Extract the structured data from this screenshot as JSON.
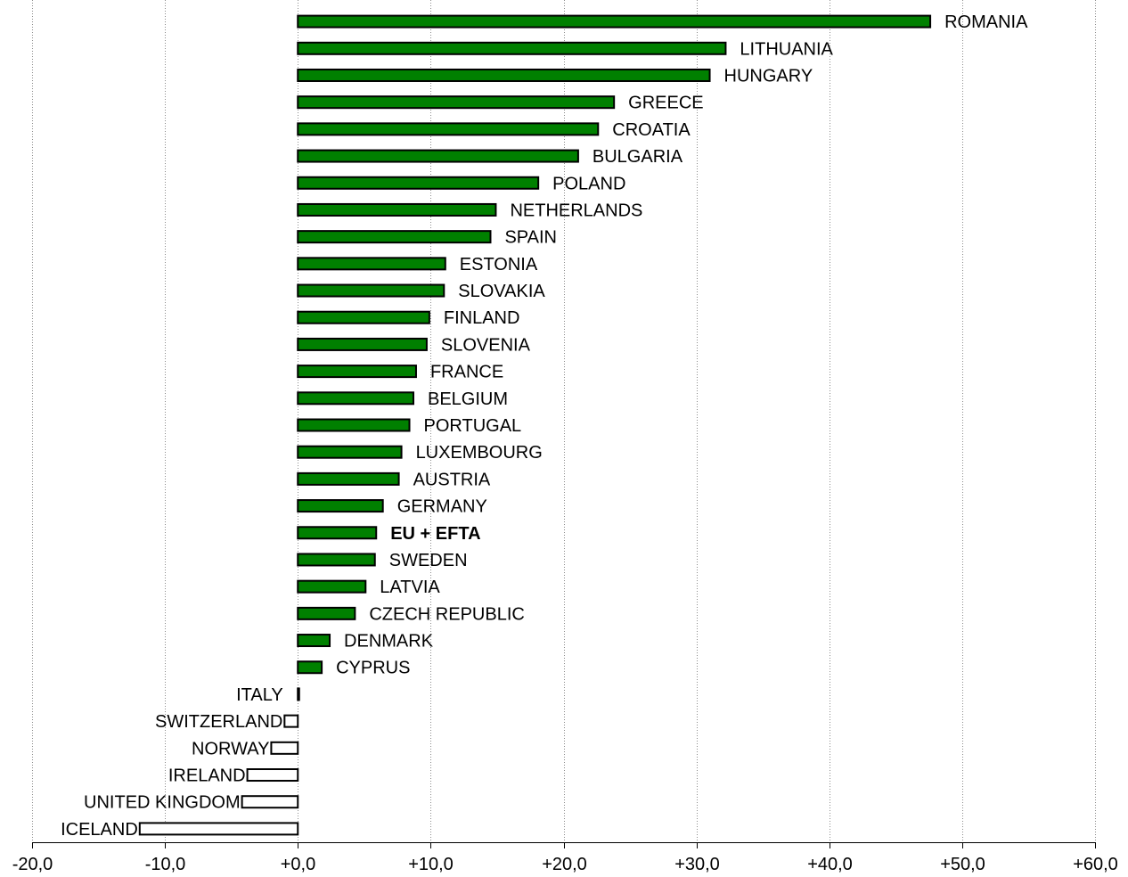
{
  "chart_data": {
    "type": "bar",
    "orientation": "horizontal",
    "title": "",
    "xlabel": "",
    "ylabel": "",
    "xlim": [
      -20,
      60
    ],
    "x_ticks": [
      -20,
      -10,
      0,
      10,
      20,
      30,
      40,
      50,
      60
    ],
    "x_tick_labels": [
      "-20,0",
      "-10,0",
      "+0,0",
      "+10,0",
      "+20,0",
      "+30,0",
      "+40,0",
      "+50,0",
      "+60,0"
    ],
    "grid": "vertical",
    "legend": "none",
    "colors": {
      "positive": "#008000",
      "negative": "#ffffff",
      "outline": "#000000"
    },
    "categories": [
      "ROMANIA",
      "LITHUANIA",
      "HUNGARY",
      "GREECE",
      "CROATIA",
      "BULGARIA",
      "POLAND",
      "NETHERLANDS",
      "SPAIN",
      "ESTONIA",
      "SLOVAKIA",
      "FINLAND",
      "SLOVENIA",
      "FRANCE",
      "BELGIUM",
      "PORTUGAL",
      "LUXEMBOURG",
      "AUSTRIA",
      "GERMANY",
      "EU + EFTA",
      "SWEDEN",
      "LATVIA",
      "CZECH REPUBLIC",
      "DENMARK",
      "CYPRUS",
      "ITALY",
      "SWITZERLAND",
      "NORWAY",
      "IRELAND",
      "UNITED KINGDOM",
      "ICELAND"
    ],
    "values": [
      47.6,
      32.2,
      31.0,
      23.8,
      22.6,
      21.1,
      18.1,
      14.9,
      14.5,
      11.1,
      11.0,
      9.9,
      9.7,
      8.9,
      8.7,
      8.4,
      7.8,
      7.6,
      6.4,
      5.9,
      5.8,
      5.1,
      4.3,
      2.4,
      1.8,
      0.1,
      -1.0,
      -2.0,
      -3.8,
      -4.2,
      -11.9
    ],
    "bold_categories": [
      "EU + EFTA"
    ]
  }
}
